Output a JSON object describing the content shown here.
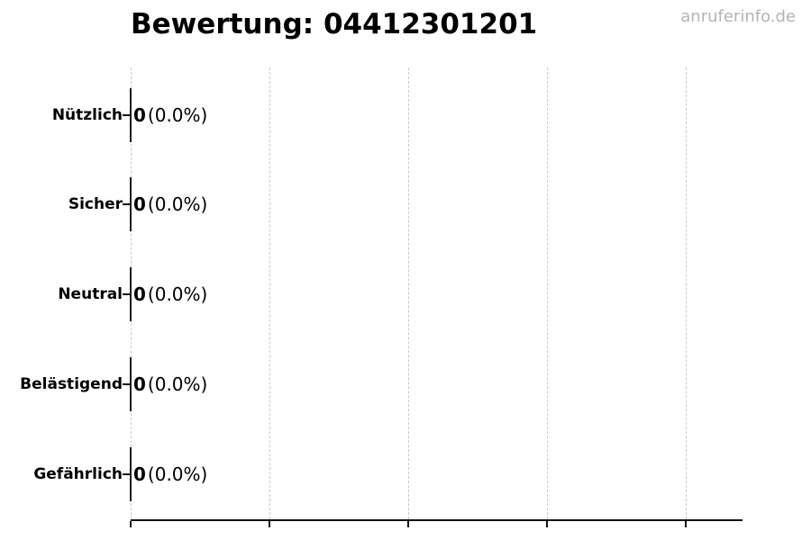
{
  "chart_data": {
    "type": "bar",
    "orientation": "horizontal",
    "title": "Bewertung: 04412301201",
    "watermark": "anruferinfo.de",
    "categories": [
      "Nützlich",
      "Sicher",
      "Neutral",
      "Belästigend",
      "Gefährlich"
    ],
    "values": [
      0,
      0,
      0,
      0,
      0
    ],
    "percentages": [
      0.0,
      0.0,
      0.0,
      0.0,
      0.0
    ],
    "counts": [
      "0",
      "0",
      "0",
      "0",
      "0"
    ],
    "percent_labels": [
      "(0.0%)",
      "(0.0%)",
      "(0.0%)",
      "(0.0%)",
      "(0.0%)"
    ],
    "bar_labels": [
      "0 (0.0%)",
      "0 (0.0%)",
      "0 (0.0%)",
      "0 (0.0%)",
      "0 (0.0%)"
    ],
    "xlabel": "",
    "ylabel": "",
    "xlim": [
      0,
      1
    ],
    "x_tick_labels": [],
    "grid": "vertical-dashed",
    "legend_position": "none"
  },
  "colors": {
    "text": "#000000",
    "watermark": "#b4b4b4",
    "gridline": "#c9c9c9",
    "axis": "#111111",
    "bar": "#1a1a1a",
    "background": "#ffffff"
  }
}
